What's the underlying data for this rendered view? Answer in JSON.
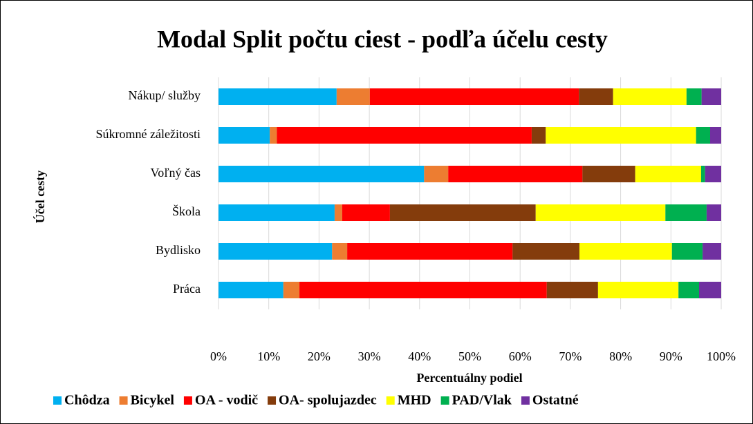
{
  "chart_data": {
    "type": "stacked_barh",
    "title": "Modal Split počtu ciest - podľa účelu cesty",
    "xlabel": "Percentuálny podiel",
    "ylabel": "Účel cesty",
    "categories": [
      "Nákup/ služby",
      "Súkromné záležitosti",
      "Voľný čas",
      "Škola",
      "Bydlisko",
      "Práca"
    ],
    "series": [
      {
        "name": "Chôdza",
        "color": "#00b0f0",
        "values": [
          23.5,
          10.2,
          40.9,
          23.1,
          22.6,
          12.9
        ]
      },
      {
        "name": "Bicykel",
        "color": "#ed7d31",
        "values": [
          6.6,
          1.4,
          4.8,
          1.5,
          3.0,
          3.2
        ]
      },
      {
        "name": "OA - vodič",
        "color": "#ff0000",
        "values": [
          41.6,
          50.7,
          26.7,
          9.5,
          32.9,
          49.2
        ]
      },
      {
        "name": "OA- spolujazdec",
        "color": "#843c0c",
        "values": [
          6.8,
          2.8,
          10.5,
          29.0,
          13.3,
          10.2
        ]
      },
      {
        "name": "MHD",
        "color": "#ffff00",
        "values": [
          14.6,
          29.9,
          13.1,
          25.8,
          18.4,
          16.0
        ]
      },
      {
        "name": "PAD/Vlak",
        "color": "#00b050",
        "values": [
          3.0,
          2.8,
          0.8,
          8.2,
          6.1,
          4.1
        ]
      },
      {
        "name": "Ostatné",
        "color": "#7030a0",
        "values": [
          3.9,
          2.2,
          3.2,
          2.9,
          3.7,
          4.4
        ]
      }
    ],
    "xlim": [
      0,
      100
    ],
    "xticks": [
      {
        "value": 0,
        "label": "0%"
      },
      {
        "value": 10,
        "label": "10%"
      },
      {
        "value": 20,
        "label": "20%"
      },
      {
        "value": 30,
        "label": "30%"
      },
      {
        "value": 40,
        "label": "40%"
      },
      {
        "value": 50,
        "label": "50%"
      },
      {
        "value": 60,
        "label": "60%"
      },
      {
        "value": 70,
        "label": "70%"
      },
      {
        "value": 80,
        "label": "80%"
      },
      {
        "value": 90,
        "label": "90%"
      },
      {
        "value": 100,
        "label": "100%"
      }
    ],
    "grid": true,
    "legend": "bottom"
  }
}
